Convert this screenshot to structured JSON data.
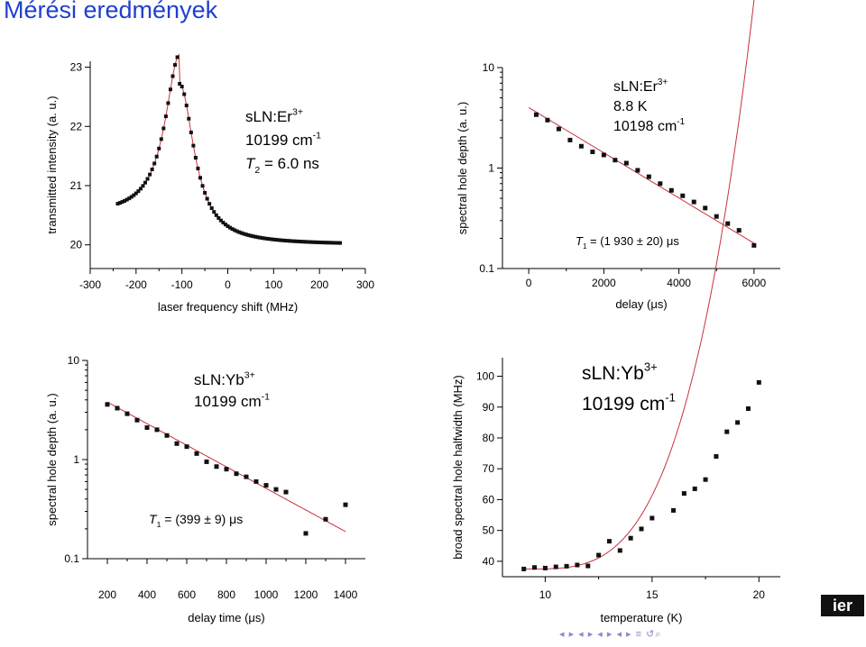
{
  "slide": {
    "title": "Mérési eredmények",
    "logo_text": "ier",
    "nav_symbols": "◂ ▸ ◂ ▸ ◂ ▸ ◂ ▸ ≡ ↺⌕"
  },
  "chart_data": [
    {
      "id": "c1",
      "type": "scatter",
      "xlabel": "laser frequency shift (MHz)",
      "ylabel": "transmitted intensity (a. u.)",
      "xlim": [
        -300,
        300
      ],
      "ylim": [
        19.6,
        23.1
      ],
      "xticks": [
        -300,
        -200,
        -100,
        0,
        100,
        200,
        300
      ],
      "xtick_labels": [
        "-300",
        "-200",
        "-100",
        "0",
        "100",
        "200",
        "300"
      ],
      "yticks": [
        20,
        21,
        22,
        23
      ],
      "ytick_labels": [
        "20",
        "21",
        "22",
        "23"
      ],
      "log_y": false,
      "fit": "lorentzian",
      "fit_params": {
        "center": -105,
        "hwhm": 38,
        "peak": 22.72,
        "base": 20.0,
        "tilt": 0.9
      },
      "x_range": [
        -240,
        245
      ],
      "annotation": [
        {
          "text": "sLN:Er",
          "sup": "3+"
        },
        {
          "text": "10199 cm",
          "sup": "-1"
        },
        {
          "text": "T",
          "sub": "2",
          "tail": " = 6.0 ns"
        }
      ]
    },
    {
      "id": "c2",
      "type": "scatter",
      "xlabel": "delay (μs)",
      "ylabel": "spectral hole depth (a. u.)",
      "xlim": [
        -700,
        6700
      ],
      "ylim": [
        0.1,
        10
      ],
      "log_y": true,
      "xticks": [
        0,
        2000,
        4000,
        6000
      ],
      "xtick_labels": [
        "0",
        "2000",
        "4000",
        "6000"
      ],
      "yticks": [
        0.1,
        1,
        10
      ],
      "ytick_labels": [
        "0.1",
        "1",
        "10"
      ],
      "points": [
        [
          200,
          3.4
        ],
        [
          500,
          3.0
        ],
        [
          800,
          2.45
        ],
        [
          1100,
          1.9
        ],
        [
          1400,
          1.65
        ],
        [
          1700,
          1.45
        ],
        [
          2000,
          1.35
        ],
        [
          2300,
          1.2
        ],
        [
          2600,
          1.12
        ],
        [
          2900,
          0.95
        ],
        [
          3200,
          0.82
        ],
        [
          3500,
          0.7
        ],
        [
          3800,
          0.6
        ],
        [
          4100,
          0.53
        ],
        [
          4400,
          0.46
        ],
        [
          4700,
          0.4
        ],
        [
          5000,
          0.33
        ],
        [
          5300,
          0.28
        ],
        [
          5600,
          0.24
        ],
        [
          6000,
          0.17
        ]
      ],
      "fit": "exponential",
      "fit_params": {
        "a": 4.0,
        "tau": 1930,
        "x0": 0,
        "from": 0,
        "to": 6000
      },
      "annotation": [
        {
          "text": "sLN:Er",
          "sup": "3+"
        },
        {
          "text": "8.8 K"
        },
        {
          "text": "10198 cm",
          "sup": "-1"
        },
        {
          "text": "T",
          "sub": "1",
          "tail": " = (1 930 ± 20) μs"
        }
      ]
    },
    {
      "id": "c3",
      "type": "scatter",
      "xlabel": "delay time (μs)",
      "ylabel": "spectral hole depth (a. u.)",
      "xlim": [
        100,
        1500
      ],
      "ylim": [
        0.1,
        10
      ],
      "log_y": true,
      "xticks": [
        200,
        400,
        600,
        800,
        1000,
        1200,
        1400
      ],
      "xtick_labels": [
        "200",
        "400",
        "600",
        "800",
        "1000",
        "1200",
        "1400"
      ],
      "yticks": [
        0.1,
        1,
        10
      ],
      "ytick_labels": [
        "0.1",
        "1",
        "10"
      ],
      "points": [
        [
          200,
          3.6
        ],
        [
          250,
          3.3
        ],
        [
          300,
          2.9
        ],
        [
          350,
          2.5
        ],
        [
          400,
          2.1
        ],
        [
          450,
          2.0
        ],
        [
          500,
          1.75
        ],
        [
          550,
          1.45
        ],
        [
          600,
          1.35
        ],
        [
          650,
          1.15
        ],
        [
          700,
          0.95
        ],
        [
          750,
          0.85
        ],
        [
          800,
          0.8
        ],
        [
          850,
          0.72
        ],
        [
          900,
          0.67
        ],
        [
          950,
          0.6
        ],
        [
          1000,
          0.55
        ],
        [
          1050,
          0.5
        ],
        [
          1100,
          0.47
        ],
        [
          1200,
          0.18
        ],
        [
          1300,
          0.25
        ],
        [
          1400,
          0.35
        ]
      ],
      "fit": "exponential",
      "fit_params": {
        "a": 3.8,
        "tau": 399,
        "x0": 200,
        "from": 200,
        "to": 1400
      },
      "annotation": [
        {
          "text": "sLN:Yb",
          "sup": "3+"
        },
        {
          "text": "10199 cm",
          "sup": "-1"
        },
        {
          "text": "T",
          "sub": "1",
          "tail": " = (399 ± 9) μs"
        }
      ]
    },
    {
      "id": "c4",
      "type": "scatter",
      "xlabel": "temperature (K)",
      "ylabel": "broad spectral hole halfwidth (MHz)",
      "xlim": [
        8.0,
        21.0
      ],
      "ylim": [
        35,
        106
      ],
      "log_y": false,
      "xticks": [
        10,
        15,
        20
      ],
      "xtick_labels": [
        "10",
        "15",
        "20"
      ],
      "yticks": [
        40,
        50,
        60,
        70,
        80,
        90,
        100
      ],
      "ytick_labels": [
        "40",
        "50",
        "60",
        "70",
        "80",
        "90",
        "100"
      ],
      "points": [
        [
          9.0,
          37.5
        ],
        [
          9.5,
          38
        ],
        [
          10.0,
          37.8
        ],
        [
          10.5,
          38.2
        ],
        [
          11.0,
          38.4
        ],
        [
          11.5,
          38.8
        ],
        [
          12.0,
          38.5
        ],
        [
          12.5,
          42
        ],
        [
          13.0,
          46.5
        ],
        [
          13.5,
          43.5
        ],
        [
          14.0,
          47.5
        ],
        [
          14.5,
          50.5
        ],
        [
          15.0,
          54
        ],
        [
          16.0,
          56.5
        ],
        [
          16.5,
          62
        ],
        [
          17.0,
          63.5
        ],
        [
          17.5,
          66.5
        ],
        [
          18.0,
          74
        ],
        [
          18.5,
          82
        ],
        [
          19.0,
          85
        ],
        [
          19.5,
          89.5
        ],
        [
          20.0,
          98
        ]
      ],
      "fit": "polynomial",
      "fit_params": {
        "c0": 37.5,
        "t0": 9.0,
        "a": 0.045,
        "p": 3.5,
        "from": 9.0,
        "to": 20.0
      },
      "annotation": [
        {
          "text": "sLN:Yb",
          "sup": "3+"
        },
        {
          "text": "10199 cm",
          "sup": "-1"
        }
      ]
    }
  ]
}
